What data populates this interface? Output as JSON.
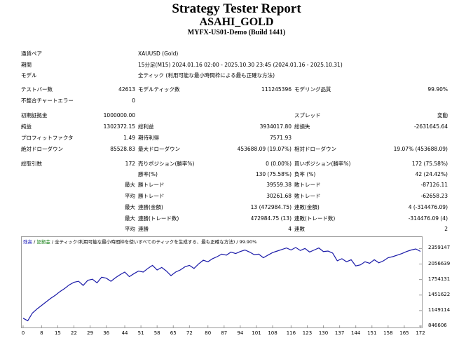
{
  "report": {
    "title": "Strategy Tester Report",
    "symbol": "ASAHI_GOLD",
    "server": "MYFX-US01-Demo (Build 1441)"
  },
  "settings": {
    "currency_pair_label": "通貨ペア",
    "currency_pair_value": "XAUUSD (Gold)",
    "period_label": "期間",
    "period_value": "15分足(M15) 2024.01.16 02:00 - 2025.10.30 23:45 (2024.01.16 - 2025.10.31)",
    "model_label": "モデル",
    "model_value": "全ティック (利用可能な最小時間枠による最も正確な方法)"
  },
  "stats": {
    "bars_label": "テストバー数",
    "bars_value": "42613",
    "ticks_label": "モデルティック数",
    "ticks_value": "111245396",
    "quality_label": "モデリング品質",
    "quality_value": "99.90%",
    "mismatch_label": "不整合チャートエラー",
    "mismatch_value": "0",
    "deposit_label": "初期証拠金",
    "deposit_value": "1000000.00",
    "spread_label": "スプレッド",
    "spread_value": "変動",
    "net_label": "純益",
    "net_value": "1302372.15",
    "gross_profit_label": "総利益",
    "gross_profit_value": "3934017.80",
    "gross_loss_label": "総損失",
    "gross_loss_value": "-2631645.64",
    "pf_label": "プロフィットファクタ",
    "pf_value": "1.49",
    "expected_label": "期待利得",
    "expected_value": "7571.93",
    "abs_dd_label": "絶対ドローダウン",
    "abs_dd_value": "85528.83",
    "max_dd_label": "最大ドローダウン",
    "max_dd_value": "453688.09 (19.07%)",
    "rel_dd_label": "相対ドローダウン",
    "rel_dd_value": "19.07% (453688.09)",
    "total_trades_label": "総取引数",
    "total_trades_value": "172",
    "short_label": "売りポジション(勝率%)",
    "short_value": "0 (0.00%)",
    "long_label": "買いポジション(勝率%)",
    "long_value": "172 (75.58%)",
    "win_pct_label": "勝率(%)",
    "win_pct_value": "130 (75.58%)",
    "loss_pct_label": "負率 (%)",
    "loss_pct_value": "42 (24.42%)",
    "max_label": "最大",
    "avg_label": "平均",
    "win_trade_label": "勝トレード",
    "loss_trade_label": "敗トレード",
    "max_win_value": "39559.38",
    "max_loss_value": "-87126.11",
    "avg_win_value": "30261.68",
    "avg_loss_value": "-62658.23",
    "consec_wins_amt_label": "連勝(金額)",
    "consec_wins_amt_value": "13 (472984.75)",
    "consec_losses_amt_label": "連敗(金額)",
    "consec_losses_amt_value": "4 (-314476.09)",
    "consec_wins_cnt_label": "連勝(トレード数)",
    "consec_wins_cnt_value": "472984.75 (13)",
    "consec_losses_cnt_label": "連敗(トレード数)",
    "consec_losses_cnt_value": "-314476.09 (4)",
    "avg_wins_label": "連勝",
    "avg_wins_value": "4",
    "avg_losses_label": "連敗",
    "avg_losses_value": "2"
  },
  "chart_legend": {
    "balance": "残高",
    "equity": "証拠金",
    "sep": " / ",
    "model_note": "/ 全ティック(利用可能な最小時間枠を使いすべてのティックを生成する、最も正確な方法)",
    "quality": "/ 99.90%"
  },
  "chart_data": {
    "type": "line",
    "series": [
      {
        "name": "残高",
        "color": "#1a1aa8",
        "x": [
          0,
          2,
          4,
          6,
          8,
          10,
          12,
          14,
          16,
          18,
          20,
          22,
          24,
          26,
          28,
          30,
          32,
          34,
          36,
          38,
          40,
          42,
          44,
          46,
          48,
          50,
          52,
          54,
          56,
          58,
          60,
          62,
          64,
          66,
          68,
          70,
          72,
          74,
          76,
          78,
          80,
          82,
          84,
          86,
          88,
          90,
          92,
          94,
          96,
          98,
          100,
          102,
          104,
          106,
          108,
          110,
          112,
          114,
          116,
          118,
          120,
          122,
          124,
          126,
          128,
          130,
          132,
          134,
          136,
          138,
          140,
          142,
          144,
          146,
          148,
          150,
          152,
          154,
          156,
          158,
          160,
          162,
          164,
          166,
          168,
          170,
          172
        ],
        "values": [
          1000000,
          950000,
          1100000,
          1180000,
          1250000,
          1320000,
          1390000,
          1450000,
          1520000,
          1580000,
          1650000,
          1700000,
          1720000,
          1640000,
          1740000,
          1760000,
          1690000,
          1800000,
          1780000,
          1720000,
          1790000,
          1850000,
          1900000,
          1810000,
          1870000,
          1920000,
          1900000,
          1970000,
          2030000,
          1940000,
          1990000,
          1920000,
          1830000,
          1900000,
          1940000,
          2000000,
          2030000,
          1970000,
          2060000,
          2130000,
          2100000,
          2160000,
          2200000,
          2250000,
          2230000,
          2290000,
          2260000,
          2300000,
          2330000,
          2290000,
          2240000,
          2250000,
          2180000,
          2230000,
          2280000,
          2310000,
          2340000,
          2370000,
          2330000,
          2380000,
          2320000,
          2360000,
          2290000,
          2330000,
          2370000,
          2300000,
          2310000,
          2270000,
          2120000,
          2160000,
          2100000,
          2140000,
          2020000,
          2040000,
          2100000,
          2070000,
          2140000,
          2080000,
          2120000,
          2180000,
          2200000,
          2230000,
          2260000,
          2300000,
          2330000,
          2350000,
          2302372
        ]
      }
    ],
    "y_ticks": [
      "2359147",
      "2056639",
      "1754131",
      "1451622",
      "1149114",
      "846606"
    ],
    "x_ticks": [
      "0",
      "8",
      "15",
      "22",
      "29",
      "36",
      "44",
      "51",
      "58",
      "65",
      "72",
      "80",
      "87",
      "94",
      "101",
      "108",
      "116",
      "123",
      "130",
      "137",
      "144",
      "151",
      "158",
      "165",
      "172"
    ],
    "xlim": [
      0,
      172
    ],
    "ylim": [
      846606,
      2460000
    ]
  }
}
